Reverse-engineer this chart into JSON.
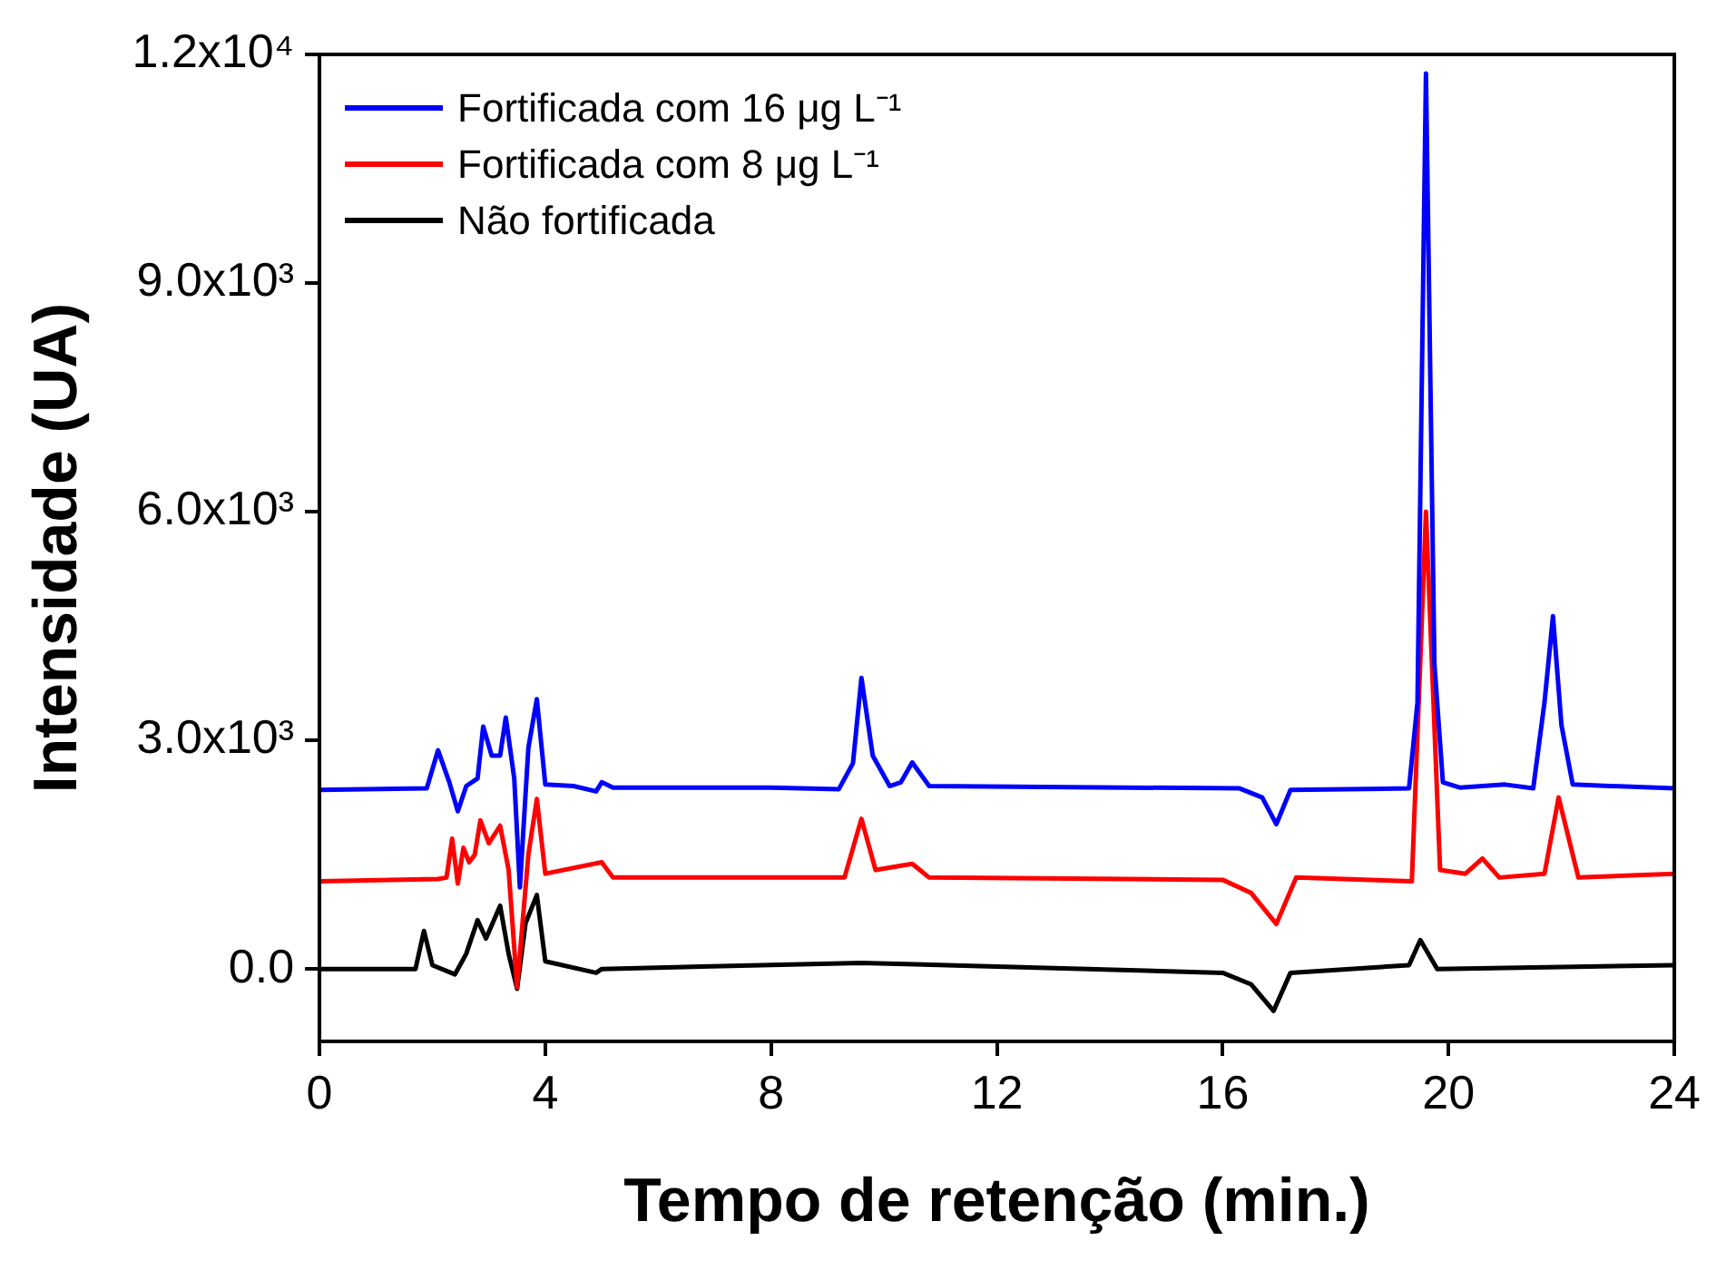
{
  "chart_data": {
    "type": "line",
    "xlabel": "Tempo de retenção (min.)",
    "ylabel": "Intensidade (UA)",
    "xlim": [
      0,
      24
    ],
    "xticks": [
      0,
      4,
      8,
      12,
      16,
      20,
      24
    ],
    "ylim": [
      -950,
      12000
    ],
    "yticks": [
      {
        "value": 0,
        "label": "0.0"
      },
      {
        "value": 3000,
        "label": "3.0x10³"
      },
      {
        "value": 6000,
        "label": "6.0x10³"
      },
      {
        "value": 9000,
        "label": "9.0x10³"
      },
      {
        "value": 12000,
        "label": "1.2x10⁴"
      }
    ],
    "grid": false,
    "legend": "top left",
    "marker": "none",
    "line_style": "solid",
    "series": [
      {
        "name": "Fortificada com 16 μg L⁻¹",
        "color": "#0000ff",
        "x": [
          0,
          1.9,
          2.1,
          2.3,
          2.45,
          2.6,
          2.8,
          2.9,
          3.05,
          3.2,
          3.3,
          3.45,
          3.55,
          3.7,
          3.85,
          4.0,
          4.5,
          4.9,
          5.0,
          5.2,
          8,
          9.2,
          9.45,
          9.6,
          9.8,
          10.1,
          10.3,
          10.5,
          10.8,
          16.3,
          16.7,
          16.95,
          17.2,
          19.3,
          19.45,
          19.6,
          19.75,
          19.9,
          20.2,
          21,
          21.5,
          21.7,
          21.85,
          22.0,
          22.2,
          24
        ],
        "values": [
          2350,
          2370,
          2870,
          2450,
          2070,
          2400,
          2500,
          3180,
          2800,
          2800,
          3300,
          2500,
          1070,
          2900,
          3540,
          2420,
          2400,
          2330,
          2450,
          2380,
          2380,
          2360,
          2700,
          3820,
          2800,
          2400,
          2450,
          2710,
          2400,
          2370,
          2250,
          1900,
          2350,
          2370,
          3500,
          11750,
          4000,
          2450,
          2380,
          2420,
          2370,
          3500,
          4630,
          3200,
          2420,
          2370
        ]
      },
      {
        "name": "Fortificada com 8 μg L⁻¹",
        "color": "#ff0000",
        "x": [
          0,
          2.1,
          2.25,
          2.35,
          2.45,
          2.55,
          2.65,
          2.75,
          2.85,
          3.0,
          3.2,
          3.35,
          3.5,
          3.7,
          3.85,
          4.0,
          5.0,
          5.2,
          9.3,
          9.6,
          9.85,
          10.5,
          10.8,
          16,
          16.5,
          16.95,
          17.3,
          19.35,
          19.6,
          19.85,
          20.3,
          20.6,
          20.9,
          21.7,
          21.95,
          22.3,
          24
        ],
        "values": [
          1150,
          1180,
          1200,
          1710,
          1120,
          1590,
          1400,
          1500,
          1950,
          1650,
          1880,
          1300,
          -240,
          1500,
          2230,
          1250,
          1400,
          1200,
          1200,
          1970,
          1300,
          1380,
          1200,
          1170,
          1000,
          590,
          1200,
          1150,
          6000,
          1300,
          1250,
          1450,
          1200,
          1250,
          2250,
          1200,
          1250
        ]
      },
      {
        "name": "Não fortificada",
        "color": "#000000",
        "x": [
          0,
          1.7,
          1.85,
          2.0,
          2.4,
          2.6,
          2.8,
          2.95,
          3.2,
          3.35,
          3.5,
          3.65,
          3.85,
          4.0,
          4.9,
          5.0,
          9.6,
          16,
          16.5,
          16.9,
          17.2,
          19.3,
          19.5,
          19.8,
          24
        ],
        "values": [
          0,
          0,
          500,
          50,
          -70,
          200,
          640,
          400,
          830,
          200,
          -260,
          600,
          970,
          100,
          -50,
          0,
          80,
          -50,
          -200,
          -550,
          -50,
          50,
          380,
          0,
          50
        ]
      }
    ]
  }
}
